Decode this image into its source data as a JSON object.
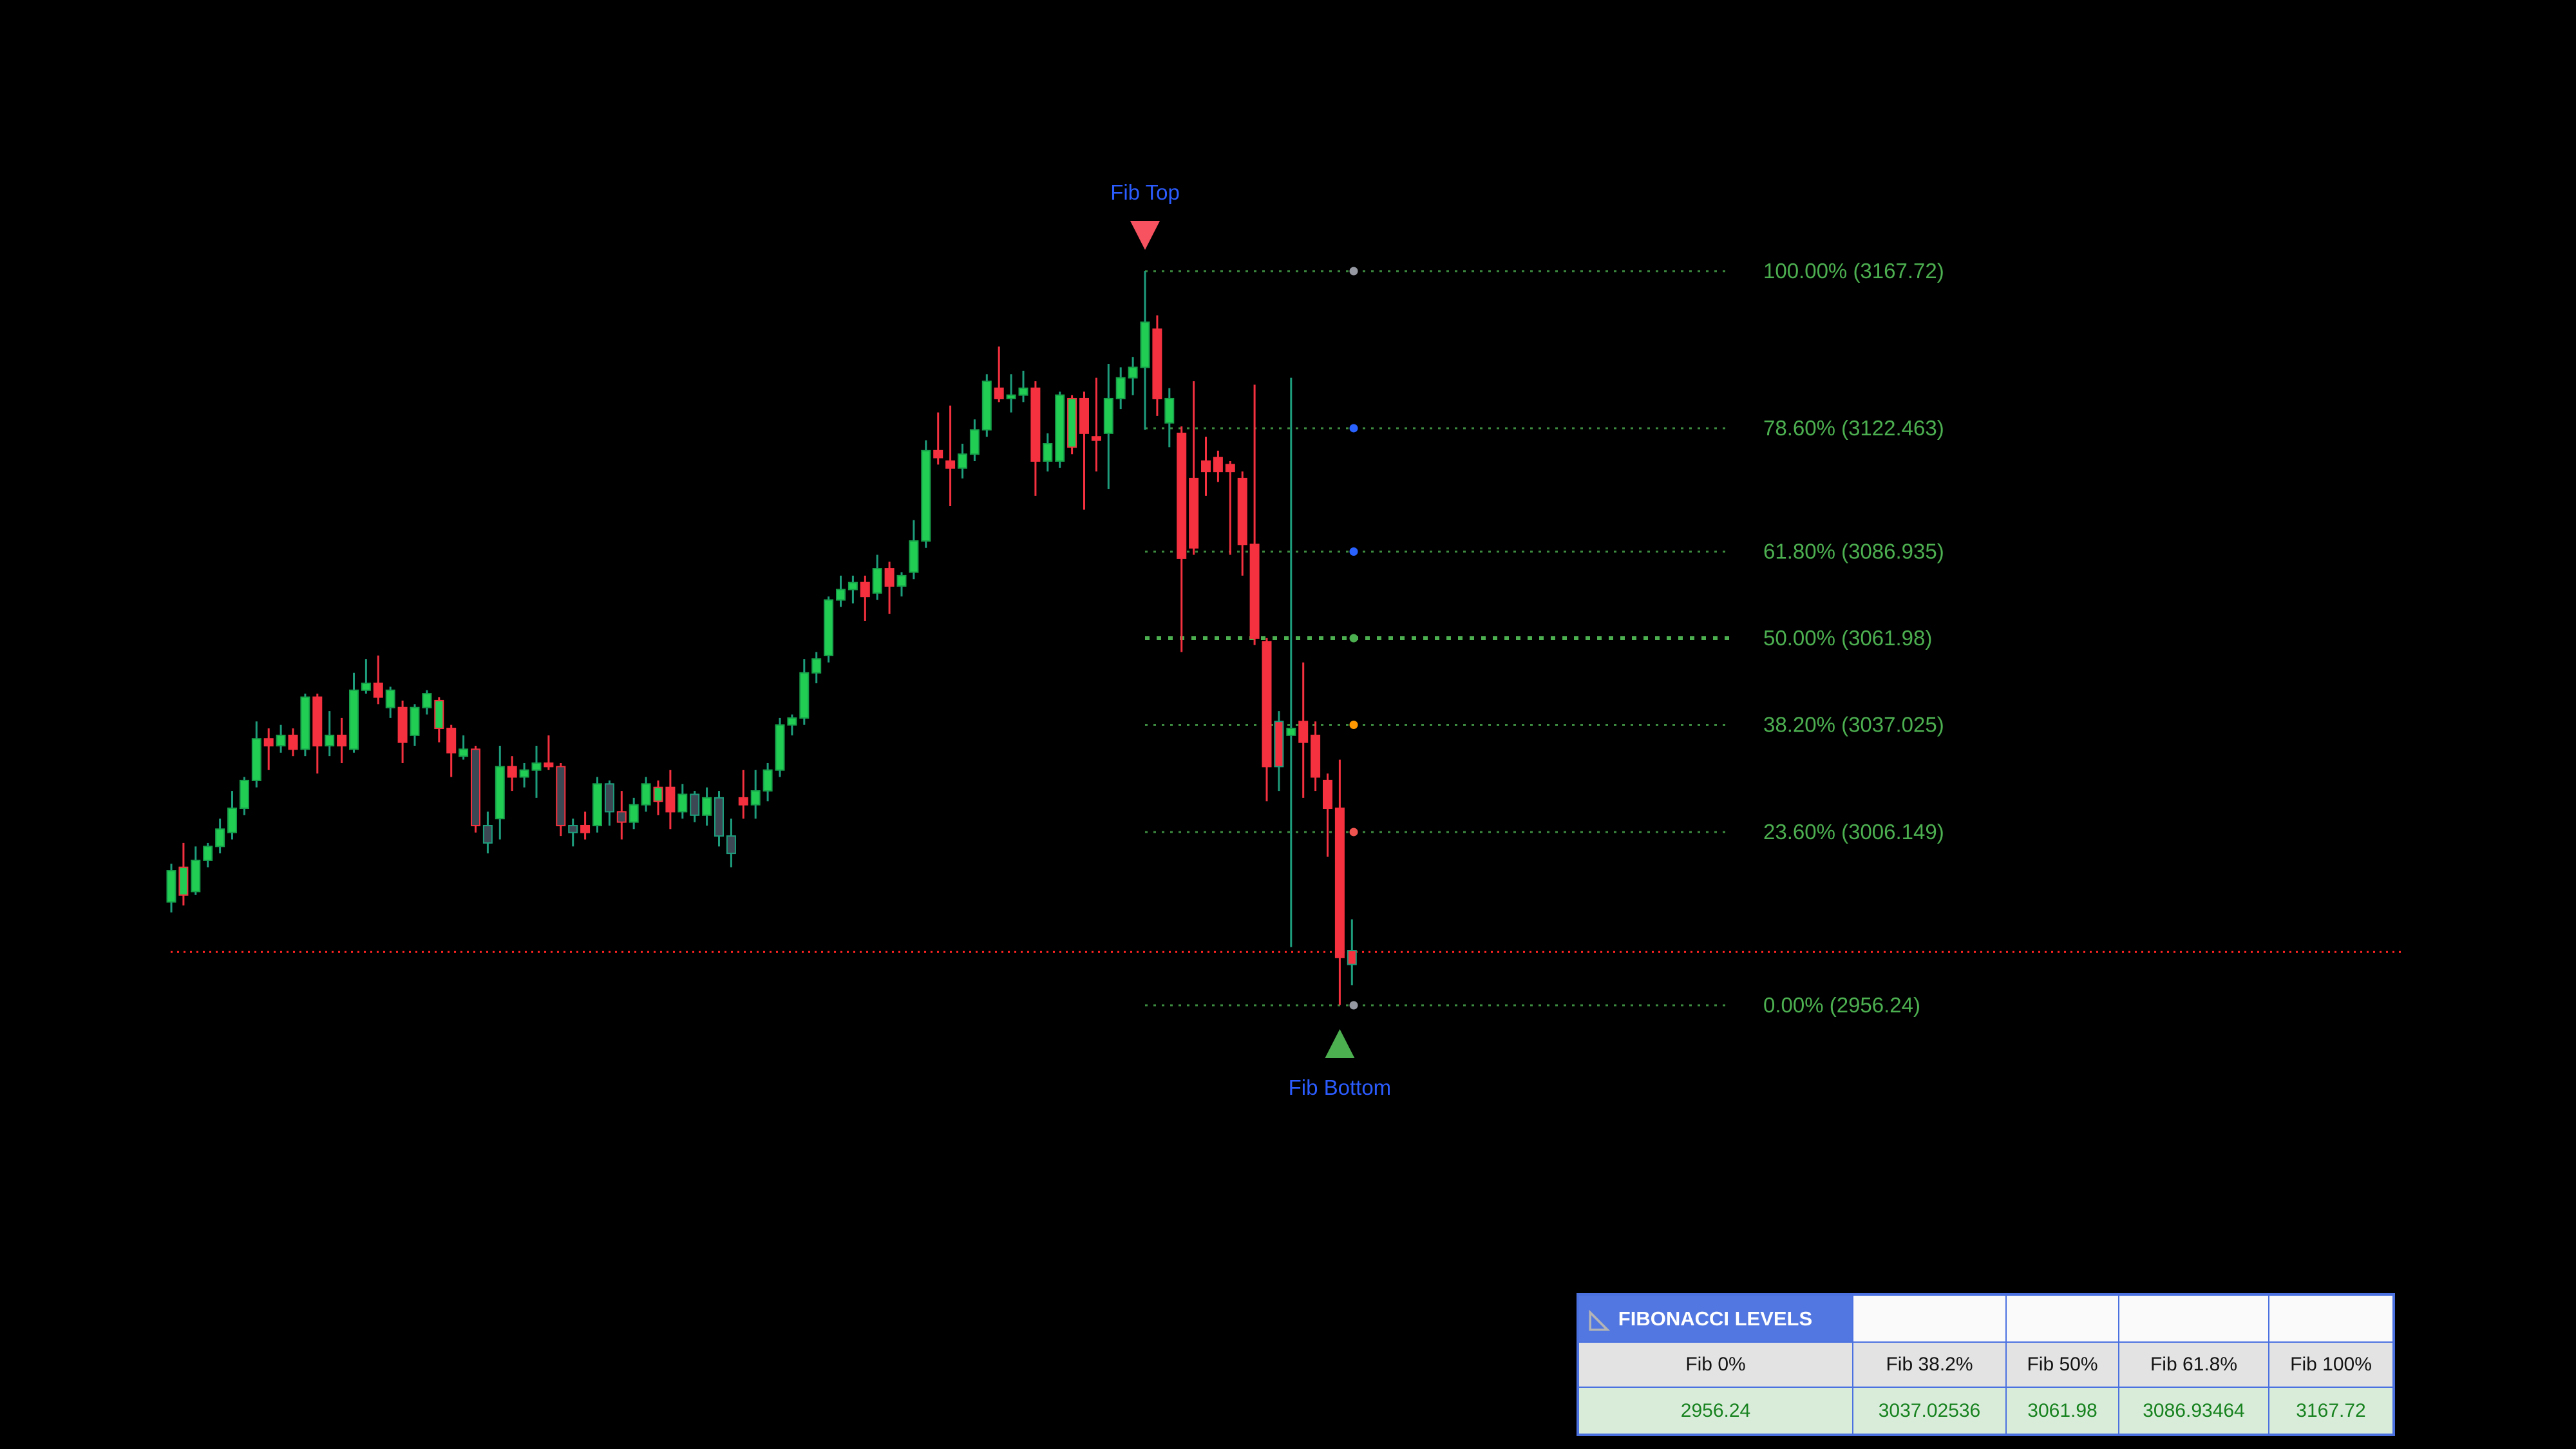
{
  "background": "#000000",
  "chart_data": {
    "type": "candlestick",
    "title": "",
    "grid": false,
    "price_range_visible": [
      2956.24,
      3167.72
    ],
    "fib_levels": [
      {
        "pct": "100.00%",
        "price": 3167.72,
        "label": "100.00% (3167.72)",
        "dot": "#9598a1",
        "major": false
      },
      {
        "pct": "78.60%",
        "price": 3122.463,
        "label": "78.60% (3122.463)",
        "dot": "#2962ff",
        "major": false
      },
      {
        "pct": "61.80%",
        "price": 3086.935,
        "label": "61.80% (3086.935)",
        "dot": "#2962ff",
        "major": false
      },
      {
        "pct": "50.00%",
        "price": 3061.98,
        "label": "50.00% (3061.98)",
        "dot": "#4caf50",
        "major": true
      },
      {
        "pct": "38.20%",
        "price": 3037.025,
        "label": "38.20% (3037.025)",
        "dot": "#ff9800",
        "major": false
      },
      {
        "pct": "23.60%",
        "price": 3006.149,
        "label": "23.60% (3006.149)",
        "dot": "#ef5350",
        "major": false
      },
      {
        "pct": "0.00%",
        "price": 2956.24,
        "label": "0.00% (2956.24)",
        "dot": "#9598a1",
        "major": false
      }
    ],
    "price_line": {
      "price": 2971.6,
      "color": "#ff2222"
    },
    "markers": {
      "top": {
        "label": "Fib Top",
        "candle_index": 80,
        "color": "#f7525f"
      },
      "bottom": {
        "label": "Fib Bottom",
        "candle_index": 96,
        "color": "#4caf50"
      }
    },
    "candles": [
      [
        2986,
        2997,
        2983,
        2995,
        "g"
      ],
      [
        2988,
        3003,
        2985,
        2996,
        "gr"
      ],
      [
        2989,
        3002,
        2988,
        2998,
        "g"
      ],
      [
        2998,
        3003,
        2996,
        3002,
        "g"
      ],
      [
        3002,
        3010,
        3000,
        3007,
        "g"
      ],
      [
        3006,
        3018,
        3004,
        3013,
        "g"
      ],
      [
        3013,
        3022,
        3011,
        3021,
        "g"
      ],
      [
        3021,
        3038,
        3019,
        3033,
        "g"
      ],
      [
        3033,
        3036,
        3024,
        3031,
        "r"
      ],
      [
        3031,
        3037,
        3029,
        3034,
        "g"
      ],
      [
        3034,
        3036,
        3028,
        3030,
        "r"
      ],
      [
        3030,
        3046,
        3028,
        3045,
        "g"
      ],
      [
        3045,
        3046,
        3023,
        3031,
        "r"
      ],
      [
        3031,
        3041,
        3028,
        3034,
        "g"
      ],
      [
        3034,
        3039,
        3026,
        3031,
        "r"
      ],
      [
        3030,
        3052,
        3029,
        3047,
        "g"
      ],
      [
        3047,
        3056,
        3046,
        3049,
        "g"
      ],
      [
        3049,
        3057,
        3043,
        3045,
        "r"
      ],
      [
        3042,
        3048,
        3039,
        3047,
        "g"
      ],
      [
        3042,
        3044,
        3026,
        3032,
        "r"
      ],
      [
        3034,
        3043,
        3031,
        3042,
        "g"
      ],
      [
        3042,
        3047,
        3040,
        3046,
        "g"
      ],
      [
        3036,
        3045,
        3032,
        3044,
        "gr"
      ],
      [
        3036,
        3037,
        3022,
        3029,
        "r"
      ],
      [
        3028,
        3034,
        3027,
        3030,
        "g"
      ],
      [
        3030,
        3031,
        3006,
        3008,
        "d"
      ],
      [
        3008,
        3012,
        3000,
        3003,
        "dt"
      ],
      [
        3010,
        3031,
        3004,
        3025,
        "g"
      ],
      [
        3025,
        3028,
        3018,
        3022,
        "r"
      ],
      [
        3022,
        3026,
        3019,
        3024,
        "g"
      ],
      [
        3024,
        3031,
        3016,
        3026,
        "g"
      ],
      [
        3026,
        3034,
        3024,
        3025,
        "r"
      ],
      [
        3025,
        3026,
        3005,
        3008,
        "d"
      ],
      [
        3008,
        3010,
        3002,
        3006,
        "dt"
      ],
      [
        3006,
        3012,
        3004,
        3008,
        "r"
      ],
      [
        3008,
        3022,
        3006,
        3020,
        "g"
      ],
      [
        3020,
        3021,
        3008,
        3012,
        "dt"
      ],
      [
        3012,
        3018,
        3004,
        3009,
        "d"
      ],
      [
        3009,
        3016,
        3007,
        3014,
        "g"
      ],
      [
        3014,
        3022,
        3012,
        3020,
        "g"
      ],
      [
        3015,
        3021,
        3011,
        3019,
        "gr"
      ],
      [
        3019,
        3024,
        3007,
        3012,
        "r"
      ],
      [
        3012,
        3020,
        3010,
        3017,
        "g"
      ],
      [
        3017,
        3018,
        3009,
        3011,
        "dt"
      ],
      [
        3011,
        3019,
        3008,
        3016,
        "g"
      ],
      [
        3016,
        3018,
        3002,
        3005,
        "dt"
      ],
      [
        3005,
        3010,
        2996,
        3000,
        "dt"
      ],
      [
        3016,
        3024,
        3010,
        3014,
        "r"
      ],
      [
        3014,
        3024,
        3010,
        3018,
        "g"
      ],
      [
        3018,
        3026,
        3015,
        3024,
        "g"
      ],
      [
        3024,
        3039,
        3022,
        3037,
        "g"
      ],
      [
        3037,
        3040,
        3034,
        3039,
        "g"
      ],
      [
        3039,
        3056,
        3037,
        3052,
        "g"
      ],
      [
        3052,
        3058,
        3049,
        3056,
        "g"
      ],
      [
        3057,
        3074,
        3055,
        3073,
        "g"
      ],
      [
        3073,
        3080,
        3071,
        3076,
        "g"
      ],
      [
        3076,
        3080,
        3072,
        3078,
        "g"
      ],
      [
        3078,
        3080,
        3067,
        3074,
        "r"
      ],
      [
        3075,
        3086,
        3073,
        3082,
        "g"
      ],
      [
        3082,
        3084,
        3069,
        3077,
        "r"
      ],
      [
        3077,
        3081,
        3074,
        3080,
        "g"
      ],
      [
        3081,
        3096,
        3079,
        3090,
        "g"
      ],
      [
        3090,
        3119,
        3088,
        3116,
        "g"
      ],
      [
        3116,
        3127,
        3112,
        3114,
        "r"
      ],
      [
        3113,
        3129,
        3100,
        3111,
        "r"
      ],
      [
        3111,
        3118,
        3108,
        3115,
        "g"
      ],
      [
        3115,
        3125,
        3113,
        3122,
        "g"
      ],
      [
        3122,
        3138,
        3120,
        3136,
        "g"
      ],
      [
        3134,
        3146,
        3130,
        3131,
        "r"
      ],
      [
        3131,
        3138,
        3127,
        3132,
        "g"
      ],
      [
        3132,
        3139,
        3130,
        3134,
        "g"
      ],
      [
        3134,
        3136,
        3103,
        3113,
        "r"
      ],
      [
        3113,
        3121,
        3110,
        3118,
        "g"
      ],
      [
        3113,
        3133,
        3111,
        3132,
        "g"
      ],
      [
        3117,
        3132,
        3115,
        3131,
        "gr"
      ],
      [
        3131,
        3133,
        3099,
        3121,
        "r"
      ],
      [
        3120,
        3137,
        3110,
        3119,
        "r"
      ],
      [
        3121,
        3141,
        3105,
        3131,
        "g"
      ],
      [
        3131,
        3140,
        3128,
        3137,
        "g"
      ],
      [
        3137,
        3143,
        3132,
        3140,
        "g"
      ],
      [
        3140,
        3167.72,
        3122,
        3153,
        "g"
      ],
      [
        3151,
        3155,
        3126,
        3131,
        "r"
      ],
      [
        3124,
        3134,
        3117,
        3131,
        "g"
      ],
      [
        3121,
        3123,
        3058,
        3085,
        "r"
      ],
      [
        3108,
        3136,
        3086,
        3088,
        "r"
      ],
      [
        3113,
        3120,
        3103,
        3110,
        "r"
      ],
      [
        3114,
        3116,
        3107,
        3110,
        "r"
      ],
      [
        3112,
        3113,
        3086,
        3110,
        "r"
      ],
      [
        3108,
        3110,
        3080,
        3089,
        "r"
      ],
      [
        3089,
        3135,
        3060,
        3062,
        "r"
      ],
      [
        3061,
        3062,
        3015,
        3025,
        "r"
      ],
      [
        3038,
        3041,
        3018,
        3025,
        "rt"
      ],
      [
        3034,
        3137,
        2973,
        3036,
        "g"
      ],
      [
        3038,
        3055,
        3016,
        3032,
        "r"
      ],
      [
        3034,
        3038,
        3018,
        3022,
        "r"
      ],
      [
        3021,
        3023,
        2999,
        3013,
        "r"
      ],
      [
        3013,
        3027,
        2956.3,
        2970,
        "r"
      ],
      [
        2972,
        2981,
        2962,
        2968,
        "rt"
      ]
    ]
  },
  "colors": {
    "up_fill": "#22cd54",
    "up_border": "#17a04a",
    "wick_teal": "#1d9d7c",
    "down": "#f5303f",
    "dark_fill": "#3c4954",
    "fib_label": "#4caf50",
    "fib_line": "#3d8c40",
    "fib_line_major": "#4caf50",
    "price_line": "#ff2222",
    "marker_text_blue": "#2b5cff",
    "triangle_down_red": "#f7525f",
    "triangle_up_green": "#4caf50"
  },
  "fib_table": {
    "header": "FIBONACCI LEVELS",
    "tool_icon": "set-square-triangle",
    "columns": [
      "Fib 0%",
      "Fib 38.2%",
      "Fib 50%",
      "Fib 61.8%",
      "Fib 100%"
    ],
    "values": [
      "2956.24",
      "3037.02536",
      "3061.98",
      "3086.93464",
      "3167.72"
    ]
  }
}
